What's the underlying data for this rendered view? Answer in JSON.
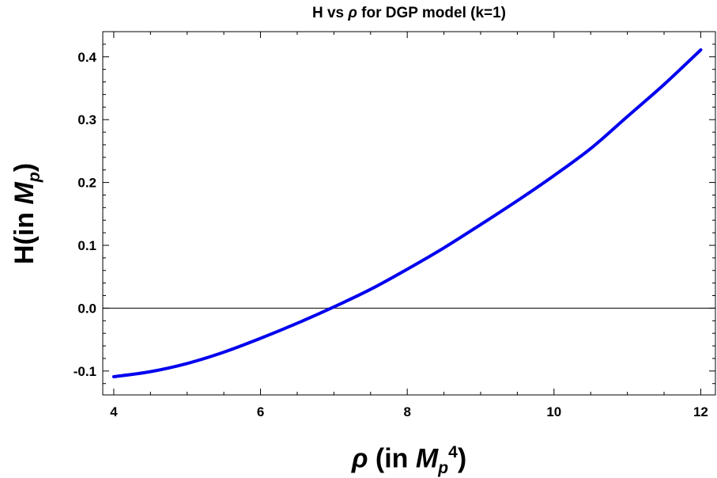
{
  "chart_data": {
    "type": "line",
    "title": "H vs ρ for DGP model (k=1)",
    "title_parts": {
      "pre": "H vs ",
      "sym": "ρ",
      "post": " for DGP model (k=1)"
    },
    "xlabel": "ρ (in Mp4)",
    "xlabel_parts": {
      "sym": "ρ",
      "pre": " (in ",
      "unit": "M",
      "sub": "p",
      "sup": "4",
      "post": ")"
    },
    "ylabel": "H(in Mp)",
    "ylabel_parts": {
      "pre": "H(in ",
      "unit": "M",
      "sub": "p",
      "post": ")"
    },
    "xlim": [
      3.85,
      12.2
    ],
    "ylim": [
      -0.138,
      0.44
    ],
    "x_ticks": [
      4,
      6,
      8,
      10,
      12
    ],
    "x_tick_labels": [
      "4",
      "6",
      "8",
      "10",
      "12"
    ],
    "y_ticks": [
      -0.1,
      0.0,
      0.1,
      0.2,
      0.3,
      0.4
    ],
    "y_tick_labels": [
      "-0.1",
      "0.0",
      "0.1",
      "0.2",
      "0.3",
      "0.4"
    ],
    "grid": false,
    "zero_line": true,
    "series": [
      {
        "color": "#0000ee",
        "x": [
          4.0,
          4.5,
          5.0,
          5.5,
          6.0,
          6.5,
          7.0,
          7.5,
          8.0,
          8.5,
          9.0,
          9.5,
          10.0,
          10.5,
          11.0,
          11.5,
          12.0
        ],
        "y": [
          -0.109,
          -0.101,
          -0.088,
          -0.07,
          -0.048,
          -0.024,
          0.002,
          0.03,
          0.062,
          0.096,
          0.133,
          0.171,
          0.211,
          0.254,
          0.305,
          0.356,
          0.411
        ]
      }
    ]
  }
}
